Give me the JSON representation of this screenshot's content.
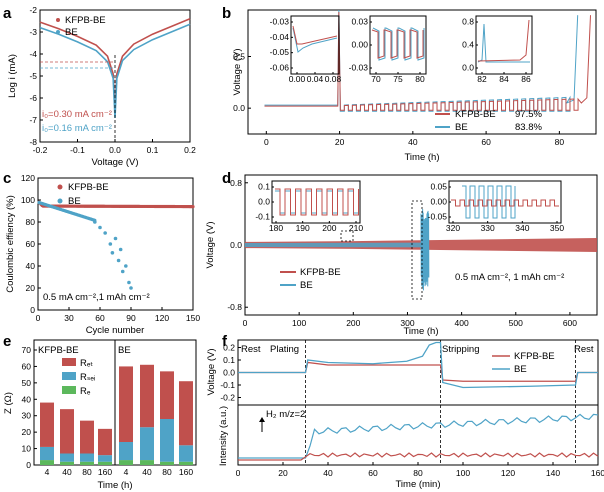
{
  "colors": {
    "red": "#c0504d",
    "blue": "#4fa3c7",
    "green": "#5cb85c",
    "dash": "#000000"
  },
  "panels": {
    "a": {
      "label": "a",
      "xlabel": "Voltage (V)",
      "ylabel": "Log i (mA)",
      "xticks": [
        "-0.2",
        "-0.1",
        "0.0",
        "0.1",
        "0.2"
      ],
      "yticks": [
        "-2",
        "-3",
        "-4",
        "-5",
        "-6",
        "-7",
        "-8"
      ],
      "legend": [
        "KFPB-BE",
        "BE"
      ],
      "annotations": [
        "i₀=0.30 mA cm⁻²",
        "i₀=0.16 mA cm⁻²"
      ]
    },
    "b": {
      "label": "b",
      "xlabel": "Time (h)",
      "ylabel": "Voltage (V)",
      "xticks": [
        "0",
        "20",
        "40",
        "60",
        "80"
      ],
      "yticks": [
        "0.0",
        "0.5"
      ],
      "legend": [
        {
          "name": "KFPB-BE",
          "value": "97.5%"
        },
        {
          "name": "BE",
          "value": "83.8%"
        }
      ],
      "insets": [
        {
          "xticks": [
            "0.00",
            "0.04",
            "0.08"
          ],
          "yticks": [
            "-0.03",
            "-0.04",
            "-0.05",
            "-0.06"
          ]
        },
        {
          "xticks": [
            "70",
            "75",
            "80"
          ],
          "yticks": [
            "0.03",
            "0.00",
            "-0.03"
          ]
        },
        {
          "xticks": [
            "82",
            "84",
            "86"
          ],
          "yticks": [
            "0.8",
            "0.4",
            "0.0"
          ]
        }
      ]
    },
    "c": {
      "label": "c",
      "xlabel": "Cycle number",
      "ylabel": "Coulombic effiency (%)",
      "xticks": [
        "0",
        "30",
        "60",
        "90",
        "120",
        "150"
      ],
      "yticks": [
        "0",
        "20",
        "40",
        "60",
        "80",
        "100",
        "120"
      ],
      "legend": [
        "KFPB-BE",
        "BE"
      ],
      "annotation": "0.5 mA cm⁻²,1 mAh cm⁻²"
    },
    "d": {
      "label": "d",
      "xlabel": "Time (h)",
      "ylabel": "Voltage (V)",
      "xticks": [
        "0",
        "100",
        "200",
        "300",
        "400",
        "500",
        "600"
      ],
      "yticks": [
        "0.8",
        "0.0",
        "-0.8"
      ],
      "legend": [
        "KFPB-BE",
        "BE"
      ],
      "annotation": "0.5 mA cm⁻², 1 mAh cm⁻²",
      "insets": [
        {
          "xticks": [
            "180",
            "190",
            "200",
            "210"
          ],
          "yticks": [
            "0.1",
            "0.0",
            "-0.1"
          ]
        },
        {
          "xticks": [
            "320",
            "330",
            "340",
            "350"
          ],
          "yticks": [
            "0.05",
            "0.00",
            "-0.05"
          ]
        }
      ]
    },
    "e": {
      "label": "e",
      "xlabel": "Time (h)",
      "ylabel": "Z (Ω)",
      "groups": [
        "KFPB-BE",
        "BE"
      ],
      "yticks": [
        "0",
        "10",
        "20",
        "30",
        "40",
        "50",
        "60",
        "70"
      ],
      "legend": [
        "Rₑₜ",
        "Rₛₑᵢ",
        "Rₑ"
      ]
    },
    "f": {
      "label": "f",
      "xlabel": "Time (min)",
      "ylabel_top": "Voltage (V)",
      "ylabel_bottom": "Intensity (a.u.)",
      "xticks": [
        "0",
        "20",
        "40",
        "60",
        "80",
        "100",
        "120",
        "140",
        "160"
      ],
      "yticks": [
        "0.2",
        "0.1",
        "0.0",
        "-0.1",
        "-0.2"
      ],
      "legend": [
        "KFPB-BE",
        "BE"
      ],
      "phases": [
        "Rest",
        "Plating",
        "Stripping",
        "Rest"
      ],
      "annotation": "H₂  m/z=2"
    }
  },
  "chart_data": [
    {
      "type": "line",
      "panel": "a",
      "xlabel": "Voltage (V)",
      "ylabel": "Log i (mA)",
      "xlim": [
        -0.2,
        0.2
      ],
      "ylim": [
        -8,
        -2
      ],
      "series": [
        {
          "name": "KFPB-BE",
          "x": [
            -0.2,
            -0.15,
            -0.1,
            -0.05,
            -0.02,
            -0.005,
            0.0,
            0.005,
            0.02,
            0.05,
            0.1,
            0.15,
            0.2
          ],
          "y": [
            -2.55,
            -2.85,
            -3.2,
            -3.6,
            -4.1,
            -4.9,
            -6.4,
            -4.9,
            -4.1,
            -3.55,
            -3.1,
            -2.75,
            -2.4
          ]
        },
        {
          "name": "BE",
          "x": [
            -0.2,
            -0.15,
            -0.1,
            -0.05,
            -0.02,
            -0.005,
            0.0,
            0.005,
            0.02,
            0.05,
            0.1,
            0.15,
            0.2
          ],
          "y": [
            -2.8,
            -3.1,
            -3.45,
            -3.85,
            -4.35,
            -5.1,
            -6.9,
            -5.1,
            -4.3,
            -3.8,
            -3.35,
            -3.0,
            -2.65
          ]
        }
      ]
    },
    {
      "type": "line",
      "panel": "b",
      "xlabel": "Time (h)",
      "ylabel": "Voltage (V)",
      "xlim": [
        -5,
        90
      ],
      "legend": [
        {
          "name": "KFPB-BE",
          "value": "97.5%"
        },
        {
          "name": "BE",
          "value": "83.8%"
        }
      ]
    },
    {
      "type": "scatter",
      "panel": "c",
      "xlabel": "Cycle number",
      "ylabel": "Coulombic effiency (%)",
      "xlim": [
        0,
        150
      ],
      "ylim": [
        0,
        120
      ],
      "series": [
        {
          "name": "KFPB-BE",
          "x": [
            1,
            5,
            10,
            20,
            30,
            40,
            50,
            60,
            70,
            80,
            90,
            100,
            110,
            120,
            130,
            140,
            150
          ],
          "y": [
            99,
            95,
            95,
            94.5,
            94.5,
            94.5,
            94.3,
            94.3,
            94.3,
            94.2,
            94.2,
            94.2,
            94.1,
            94.1,
            94.1,
            94.0,
            94.0
          ]
        },
        {
          "name": "BE",
          "x": [
            1,
            5,
            10,
            20,
            30,
            40,
            50,
            55,
            60,
            65,
            70,
            72,
            75,
            78,
            80,
            82,
            85,
            88,
            90
          ],
          "y": [
            99,
            95,
            93,
            90,
            88,
            86,
            82,
            80,
            75,
            70,
            60,
            52,
            65,
            45,
            55,
            35,
            40,
            25,
            20
          ]
        }
      ]
    },
    {
      "type": "line",
      "panel": "d",
      "xlabel": "Time (h)",
      "ylabel": "Voltage (V)",
      "xlim": [
        0,
        650
      ],
      "ylim": [
        -0.9,
        0.9
      ]
    },
    {
      "type": "bar",
      "panel": "e",
      "xlabel": "Time (h)",
      "ylabel": "Z (Ω)",
      "categories": [
        "4",
        "40",
        "80",
        "160",
        "4",
        "40",
        "80",
        "160"
      ],
      "groups": [
        "KFPB-BE",
        "KFPB-BE",
        "KFPB-BE",
        "KFPB-BE",
        "BE",
        "BE",
        "BE",
        "BE"
      ],
      "ylim": [
        0,
        70
      ],
      "series": [
        {
          "name": "Rₑ",
          "values": [
            3,
            2,
            2,
            2,
            3,
            3,
            2,
            2
          ]
        },
        {
          "name": "Rₛₑᵢ",
          "values": [
            8,
            5,
            5,
            4,
            11,
            20,
            26,
            10
          ]
        },
        {
          "name": "Rₑₜ",
          "values": [
            27,
            27,
            20,
            16,
            46,
            38,
            29,
            39
          ]
        }
      ]
    },
    {
      "type": "line",
      "panel": "f",
      "xlabel": "Time (min)",
      "ylabel": "Voltage (V)",
      "xlim": [
        0,
        160
      ],
      "series": [
        {
          "name": "KFPB-BE",
          "x": [
            0,
            30,
            31,
            40,
            60,
            80,
            90,
            91,
            100,
            130,
            150,
            151,
            160
          ],
          "y": [
            0.0,
            0.0,
            0.08,
            0.06,
            0.06,
            0.06,
            0.06,
            -0.06,
            -0.07,
            -0.07,
            -0.07,
            0.0,
            0.0
          ]
        },
        {
          "name": "BE",
          "x": [
            0,
            30,
            31,
            40,
            60,
            75,
            82,
            85,
            88,
            90,
            91,
            100,
            130,
            150,
            151,
            160
          ],
          "y": [
            0.0,
            0.0,
            0.1,
            0.08,
            0.07,
            0.09,
            0.13,
            0.22,
            0.24,
            0.24,
            -0.08,
            -0.12,
            -0.11,
            -0.1,
            0.0,
            0.0
          ]
        }
      ]
    }
  ]
}
